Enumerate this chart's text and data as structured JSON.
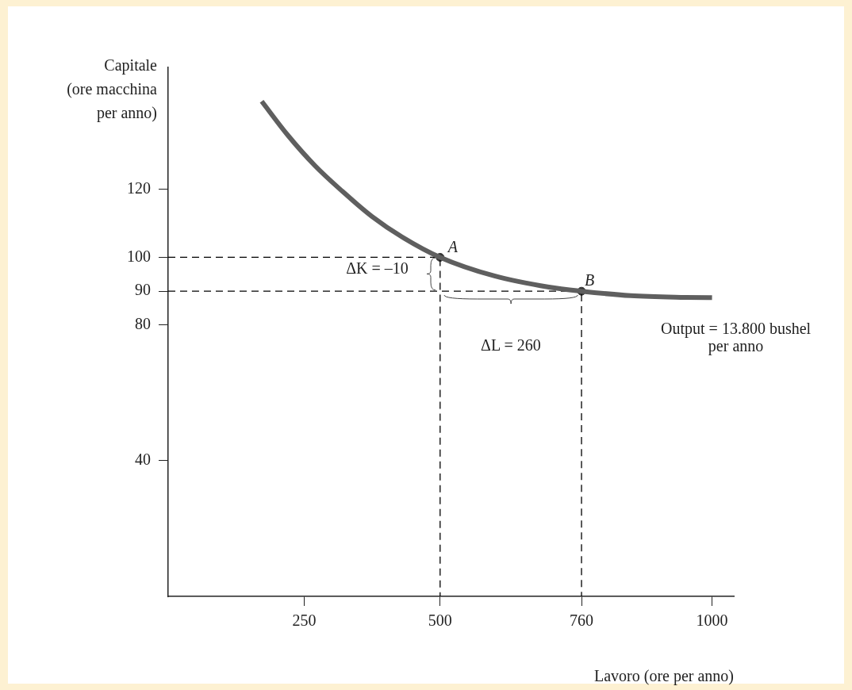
{
  "chart_data": {
    "type": "line",
    "xlabel": "Lavoro (ore per anno)",
    "ylabel": "Capitale (ore macchina per anno)",
    "xlim": [
      0,
      1040
    ],
    "xticks": [
      250,
      500,
      760,
      1000
    ],
    "ylim": [
      0,
      156
    ],
    "yticks": [
      40,
      80,
      90,
      100,
      120
    ],
    "grid": false,
    "legend": false,
    "series": [
      {
        "color": "#5f5f5f",
        "marker": "none",
        "x": [
          172,
          220,
          270,
          320,
          375,
          430,
          500,
          600,
          700,
          760,
          850,
          950,
          1000
        ],
        "values": [
          146,
          136,
          127,
          119.5,
          112,
          106,
          100,
          94.5,
          91.2,
          90,
          88.7,
          88.2,
          88.1
        ]
      },
      {
        "type": "line",
        "color": "#000000",
        "marker": "none",
        "line_style": "dashed",
        "x": [
          0,
          500,
          500
        ],
        "values": [
          100,
          100,
          0
        ]
      },
      {
        "type": "line",
        "color": "#000000",
        "marker": "none",
        "line_style": "dashed",
        "x": [
          0,
          760,
          760
        ],
        "values": [
          90,
          90,
          0
        ]
      },
      {
        "type": "scatter",
        "color": "#333333",
        "marker": "circle",
        "x": [
          500,
          760
        ],
        "values": [
          100,
          90
        ]
      }
    ],
    "annotations": [
      {
        "text": "A",
        "x": 500,
        "y": 100
      },
      {
        "text": "B",
        "x": 760,
        "y": 90
      },
      {
        "text": "ΔK = –10",
        "x": 500,
        "y": 95
      },
      {
        "text": "ΔL = 260",
        "x": 630,
        "y": 90
      },
      {
        "text": "Output = 13.800 bushel per anno",
        "x": 1000,
        "y": 88
      }
    ]
  }
}
